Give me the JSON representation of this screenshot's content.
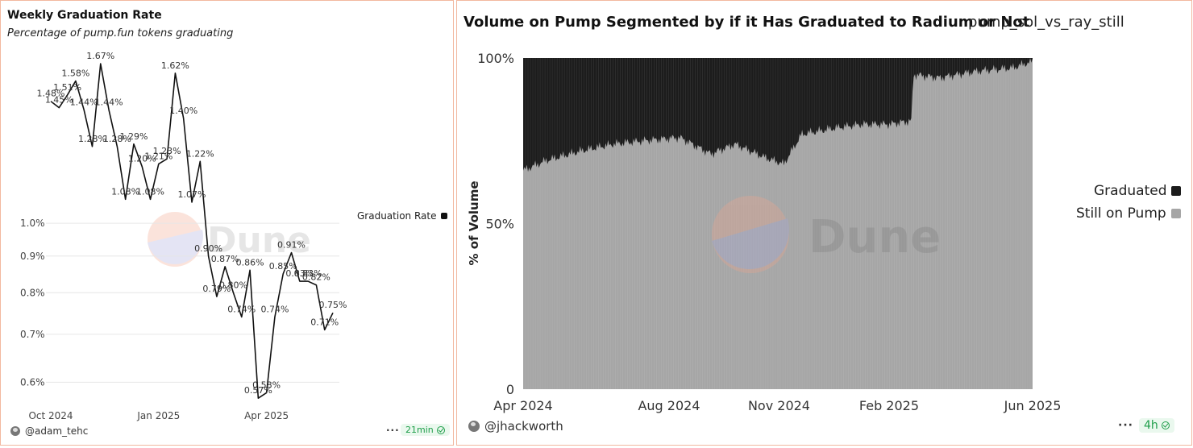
{
  "left": {
    "title": "Weekly Graduation Rate",
    "subtitle": "Percentage of pump.fun tokens graduating",
    "author": "@adam_tehc",
    "more_label": "···",
    "time_badge": "21min",
    "watermark": "Dune",
    "legend_label": "Graduation Rate",
    "legend_color": "#111111"
  },
  "right": {
    "title": "Volume on Pump Segmented by if it Has Graduated to Radium or Not",
    "query_name": "pump_sol_vs_ray_still",
    "author": "@jhackworth",
    "more_label": "···",
    "time_badge": "4h",
    "watermark": "Dune",
    "legend": [
      {
        "label": "Graduated",
        "color": "#1c1c1c"
      },
      {
        "label": "Still on Pump",
        "color": "#a6a6a6"
      }
    ]
  },
  "chart_data": [
    {
      "type": "line",
      "title": "Weekly Graduation Rate",
      "subtitle": "Percentage of pump.fun tokens graduating",
      "y_scale": "log",
      "ylim": [
        0.56,
        1.75
      ],
      "x_tick_labels": [
        "Oct 2024",
        "Jan 2025",
        "Apr 2025"
      ],
      "y_tick_labels": [
        "0.6%",
        "0.7%",
        "0.8%",
        "0.9%",
        "1.0%"
      ],
      "y_tick_values": [
        0.6,
        0.7,
        0.8,
        0.9,
        1.0
      ],
      "x_tick_index": [
        0,
        13,
        26
      ],
      "series": [
        {
          "name": "Graduation Rate",
          "color": "#111111",
          "values": [
            1.48,
            1.45,
            1.51,
            1.58,
            1.44,
            1.28,
            1.67,
            1.44,
            1.28,
            1.08,
            1.29,
            1.2,
            1.08,
            1.21,
            1.23,
            1.62,
            1.4,
            1.07,
            1.22,
            0.9,
            0.79,
            0.87,
            0.8,
            0.74,
            0.86,
            0.57,
            0.58,
            0.74,
            0.85,
            0.91,
            0.83,
            0.83,
            0.82,
            0.71,
            0.75
          ],
          "labels": [
            "1.48%",
            "1.45%",
            "1.51%",
            "1.58%",
            "1.44%",
            "1.28%",
            "1.67%",
            "1.44%",
            "1.28%",
            "1.08%",
            "1.29%",
            "1.20%",
            "1.08%",
            "1.21%",
            "1.23%",
            "1.62%",
            "1.40%",
            "1.07%",
            "1.22%",
            "0.90%",
            "0.79%",
            "0.87%",
            "0.80%",
            "0.74%",
            "0.86%",
            "0.57%",
            "0.58%",
            "0.74%",
            "0.85%",
            "0.91%",
            "0.83%",
            "0.83%",
            "0.82%",
            "0.71%",
            "0.75%"
          ]
        }
      ],
      "grid": true,
      "legend_position": "right"
    },
    {
      "type": "area",
      "stacked": "percent",
      "title": "Volume on Pump Segmented by if it Has Graduated to Radium or Not",
      "ylabel": "% of Volume",
      "y_tick_labels": [
        "0",
        "50%",
        "100%"
      ],
      "x_tick_labels": [
        "Apr 2024",
        "Aug 2024",
        "Nov 2024",
        "Feb 2025",
        "Jun 2025"
      ],
      "x_tick_dates": [
        "2024-04-01",
        "2024-08-01",
        "2024-11-01",
        "2025-02-01",
        "2025-06-01"
      ],
      "x_range_dates": [
        "2024-04-01",
        "2025-06-01"
      ],
      "ylim": [
        0,
        100
      ],
      "series_names": [
        "Still on Pump",
        "Graduated"
      ],
      "still_on_pump_pct_keypoints": {
        "dates": [
          "2024-04-01",
          "2024-04-20",
          "2024-05-20",
          "2024-06-15",
          "2024-07-10",
          "2024-08-10",
          "2024-09-05",
          "2024-09-25",
          "2024-10-20",
          "2024-11-05",
          "2024-11-20",
          "2024-12-20",
          "2025-01-10",
          "2025-02-01",
          "2025-02-20",
          "2025-02-21",
          "2025-03-15",
          "2025-04-15",
          "2025-05-15",
          "2025-06-01"
        ],
        "values": [
          66,
          69,
          72,
          74,
          75,
          76,
          71,
          74,
          70,
          68,
          77,
          79,
          80,
          80,
          81,
          95,
          94,
          96,
          97,
          99
        ]
      },
      "grid": false,
      "legend_position": "right"
    }
  ]
}
